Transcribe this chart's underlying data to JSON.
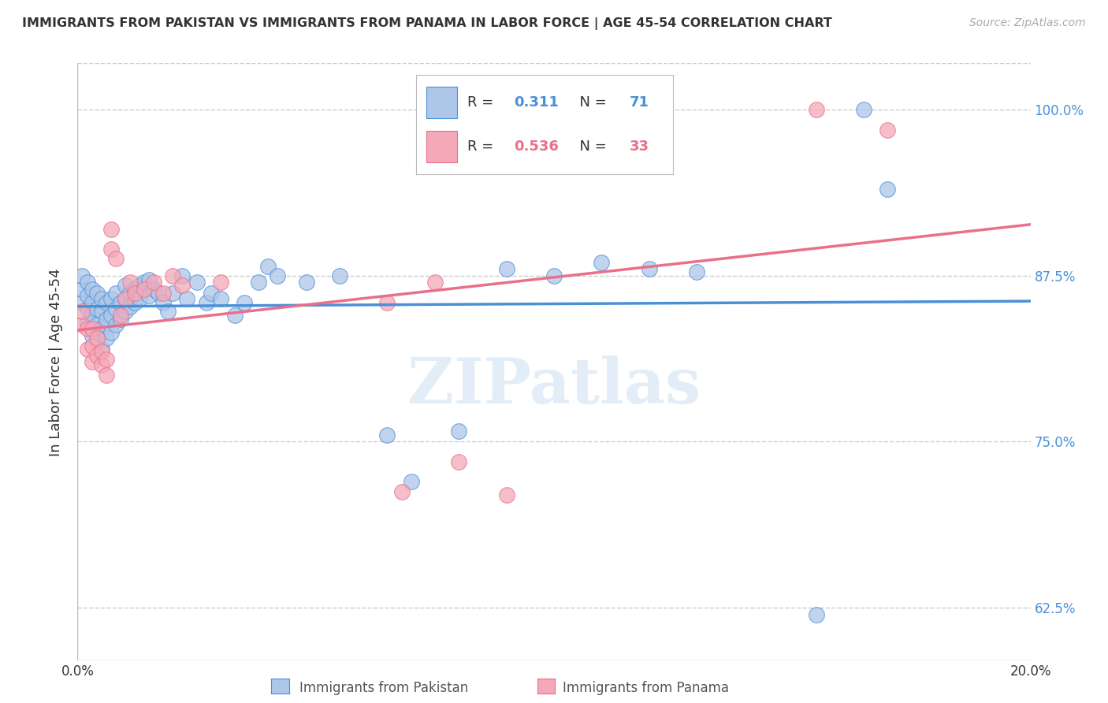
{
  "title": "IMMIGRANTS FROM PAKISTAN VS IMMIGRANTS FROM PANAMA IN LABOR FORCE | AGE 45-54 CORRELATION CHART",
  "source": "Source: ZipAtlas.com",
  "ylabel": "In Labor Force | Age 45-54",
  "xlim": [
    0.0,
    0.2
  ],
  "ylim": [
    0.585,
    1.035
  ],
  "yticks": [
    0.625,
    0.75,
    0.875,
    1.0
  ],
  "ytick_labels": [
    "62.5%",
    "75.0%",
    "87.5%",
    "100.0%"
  ],
  "xticks": [
    0.0,
    0.04,
    0.08,
    0.12,
    0.16,
    0.2
  ],
  "xtick_labels": [
    "0.0%",
    "",
    "",
    "",
    "",
    "20.0%"
  ],
  "pakistan_color": "#aec6e8",
  "panama_color": "#f4a8b8",
  "pakistan_r": 0.311,
  "pakistan_n": 71,
  "panama_r": 0.536,
  "panama_n": 33,
  "trend_pakistan_color": "#4a90d9",
  "trend_panama_color": "#e8708a",
  "watermark": "ZIPatlas",
  "background_color": "#ffffff",
  "grid_color": "#cccccc",
  "pakistan_scatter_x": [
    0.001,
    0.001,
    0.001,
    0.002,
    0.002,
    0.002,
    0.002,
    0.003,
    0.003,
    0.003,
    0.003,
    0.004,
    0.004,
    0.004,
    0.004,
    0.005,
    0.005,
    0.005,
    0.005,
    0.006,
    0.006,
    0.006,
    0.007,
    0.007,
    0.007,
    0.008,
    0.008,
    0.008,
    0.009,
    0.009,
    0.01,
    0.01,
    0.01,
    0.011,
    0.011,
    0.012,
    0.012,
    0.013,
    0.013,
    0.014,
    0.015,
    0.015,
    0.016,
    0.017,
    0.018,
    0.019,
    0.02,
    0.022,
    0.023,
    0.025,
    0.027,
    0.028,
    0.03,
    0.033,
    0.035,
    0.038,
    0.04,
    0.042,
    0.048,
    0.055,
    0.065,
    0.07,
    0.08,
    0.09,
    0.1,
    0.11,
    0.12,
    0.13,
    0.155,
    0.165,
    0.17
  ],
  "pakistan_scatter_y": [
    0.855,
    0.865,
    0.875,
    0.84,
    0.85,
    0.86,
    0.87,
    0.83,
    0.845,
    0.855,
    0.865,
    0.825,
    0.838,
    0.85,
    0.862,
    0.82,
    0.835,
    0.848,
    0.858,
    0.828,
    0.842,
    0.855,
    0.832,
    0.845,
    0.858,
    0.838,
    0.85,
    0.862,
    0.842,
    0.855,
    0.848,
    0.858,
    0.868,
    0.852,
    0.862,
    0.855,
    0.865,
    0.858,
    0.868,
    0.87,
    0.86,
    0.872,
    0.865,
    0.862,
    0.855,
    0.848,
    0.862,
    0.875,
    0.858,
    0.87,
    0.855,
    0.862,
    0.858,
    0.845,
    0.855,
    0.87,
    0.882,
    0.875,
    0.87,
    0.875,
    0.755,
    0.72,
    0.758,
    0.88,
    0.875,
    0.885,
    0.88,
    0.878,
    0.62,
    1.0,
    0.94
  ],
  "panama_scatter_x": [
    0.001,
    0.001,
    0.002,
    0.002,
    0.003,
    0.003,
    0.003,
    0.004,
    0.004,
    0.005,
    0.005,
    0.006,
    0.006,
    0.007,
    0.007,
    0.008,
    0.009,
    0.01,
    0.011,
    0.012,
    0.014,
    0.016,
    0.018,
    0.02,
    0.022,
    0.03,
    0.065,
    0.068,
    0.075,
    0.08,
    0.09,
    0.155,
    0.17
  ],
  "panama_scatter_y": [
    0.838,
    0.848,
    0.82,
    0.835,
    0.81,
    0.822,
    0.835,
    0.815,
    0.828,
    0.808,
    0.818,
    0.8,
    0.812,
    0.895,
    0.91,
    0.888,
    0.845,
    0.858,
    0.87,
    0.862,
    0.865,
    0.87,
    0.862,
    0.875,
    0.868,
    0.87,
    0.855,
    0.712,
    0.87,
    0.735,
    0.71,
    1.0,
    0.985
  ]
}
